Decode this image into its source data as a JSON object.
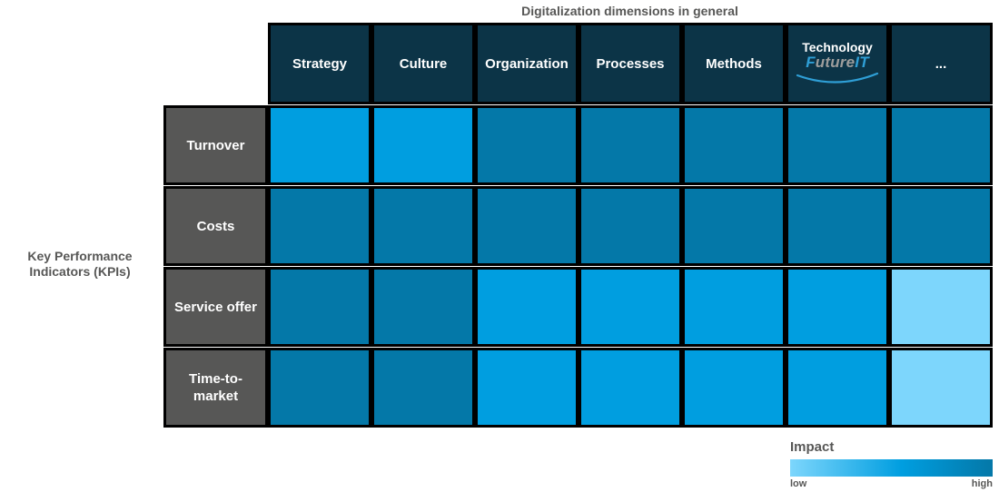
{
  "chart_data": {
    "type": "heatmap",
    "title": "Digitalization dimensions in general",
    "ylabel": "Key Performance Indicators (KPIs)",
    "x_categories": [
      "Strategy",
      "Culture",
      "Organization",
      "Processes",
      "Methods",
      "Technology (FutureIT)",
      "..."
    ],
    "y_categories": [
      "Turnover",
      "Costs",
      "Service offer",
      "Time-to-market"
    ],
    "values": [
      [
        "medium",
        "medium",
        "high",
        "high",
        "high",
        "high",
        "high"
      ],
      [
        "high",
        "high",
        "high",
        "high",
        "high",
        "high",
        "high"
      ],
      [
        "high",
        "high",
        "medium",
        "medium",
        "medium",
        "medium",
        "low"
      ],
      [
        "high",
        "high",
        "medium",
        "medium",
        "medium",
        "medium",
        "low"
      ]
    ],
    "impact_scale": [
      "low",
      "medium",
      "high"
    ],
    "legend": {
      "title": "Impact",
      "min_label": "low",
      "max_label": "high"
    },
    "legend_position": "bottom-right",
    "grid": "black separators"
  },
  "logo": {
    "column_index": 5,
    "top_text": "Technology",
    "brand_f": "F",
    "brand_mid": "uture",
    "brand_it": "IT"
  },
  "colors": {
    "impact_low": "#7DD6FC",
    "impact_medium": "#009EE0",
    "impact_high": "#0478A8",
    "header_bg": "#0C3447",
    "row_label_bg": "#575756",
    "grid_line": "#000000",
    "text_gray": "#575756",
    "logo_gray": "#9D9D9C",
    "logo_blue": "#2F9FD6",
    "cell_text": "#FFFFFF"
  }
}
